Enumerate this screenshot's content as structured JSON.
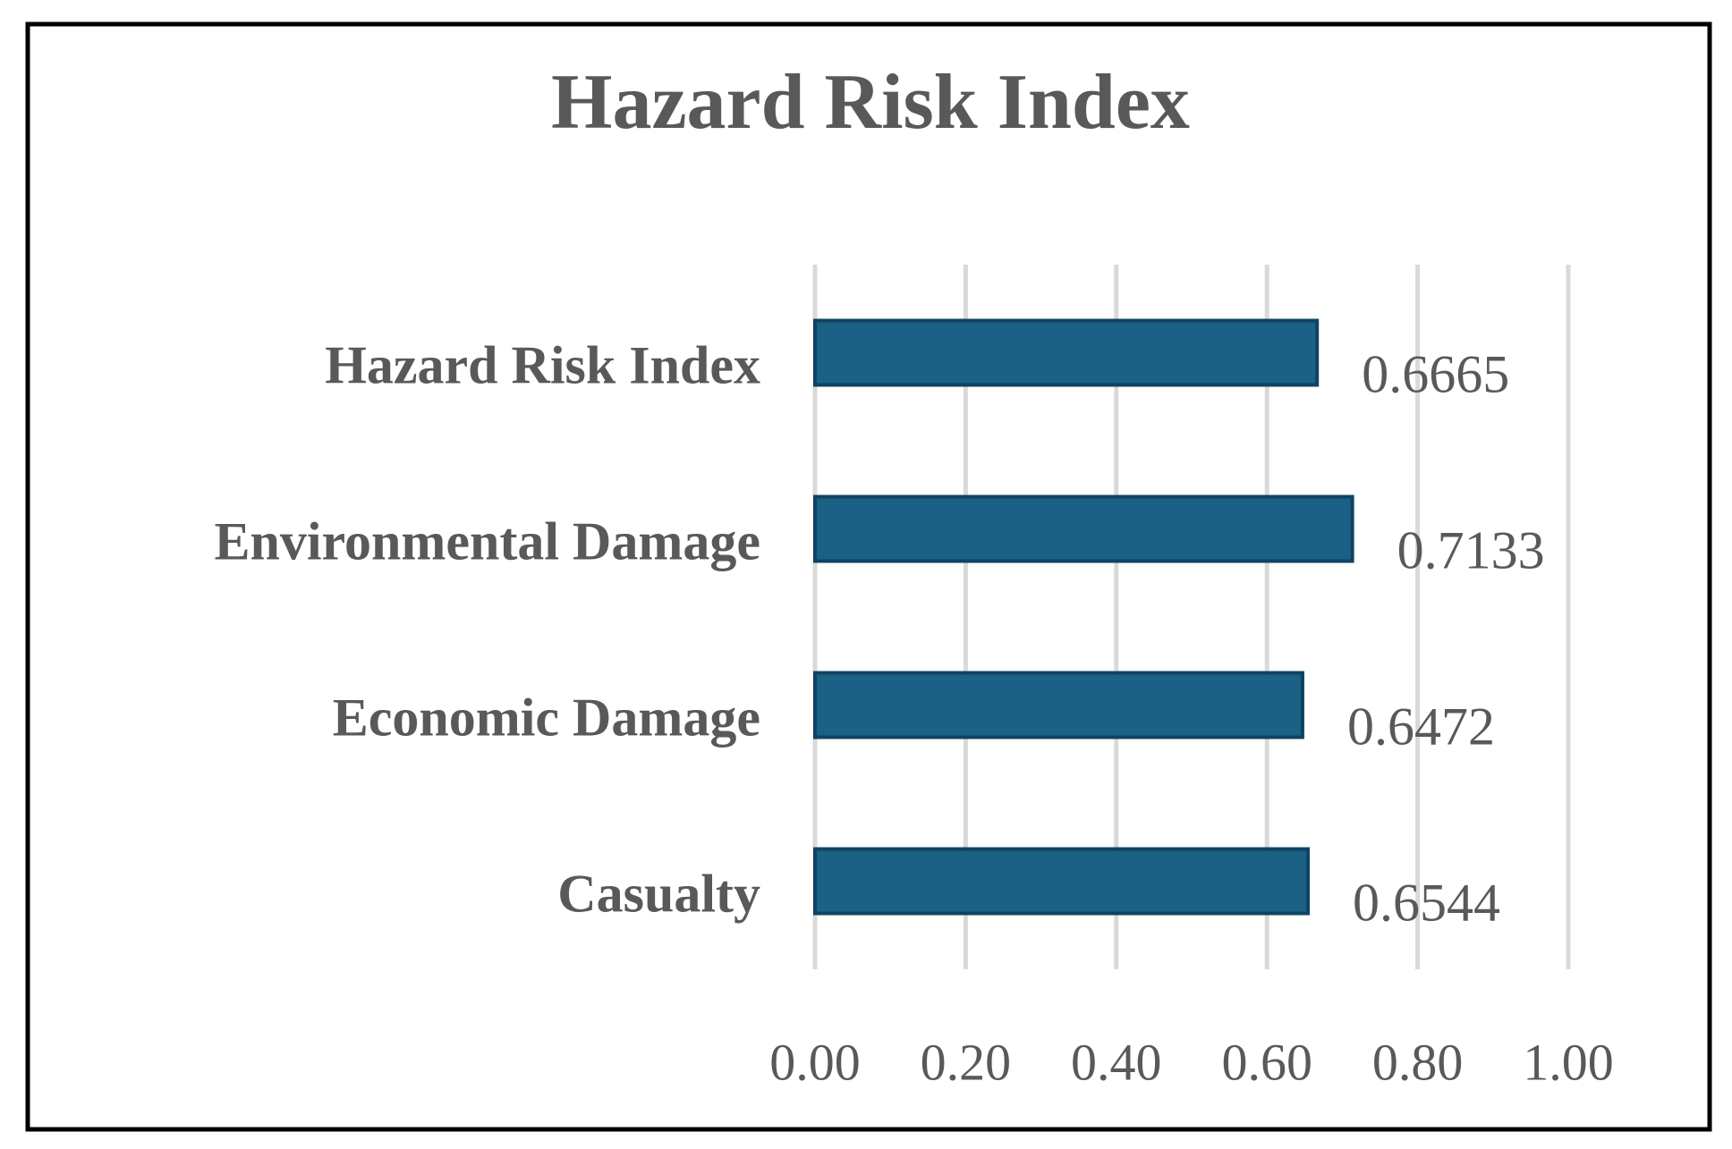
{
  "chart_data": {
    "type": "bar",
    "orientation": "horizontal",
    "title": "Hazard Risk Index",
    "categories": [
      "Hazard Risk Index",
      "Environmental Damage",
      "Economic Damage",
      "Casualty"
    ],
    "values": [
      0.6665,
      0.7133,
      0.6472,
      0.6544
    ],
    "color": "#1a6185",
    "xlim": [
      0,
      1
    ],
    "xticks": [
      {
        "value": 0,
        "label": "0.00"
      },
      {
        "value": 0.2,
        "label": "0.20"
      },
      {
        "value": 0.4,
        "label": "0.40"
      },
      {
        "value": 0.6,
        "label": "0.60"
      },
      {
        "value": 0.8,
        "label": "0.80"
      },
      {
        "value": 1,
        "label": "1.00"
      }
    ],
    "grid": true
  }
}
